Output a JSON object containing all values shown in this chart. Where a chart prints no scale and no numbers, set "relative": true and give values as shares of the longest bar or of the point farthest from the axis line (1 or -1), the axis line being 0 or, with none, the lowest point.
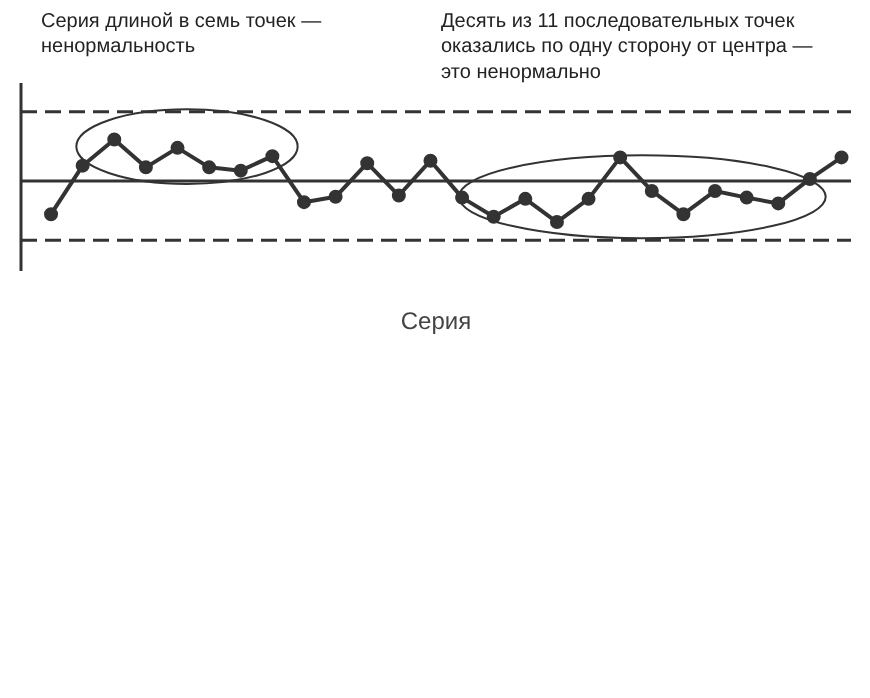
{
  "chart_data": {
    "type": "line",
    "relative": true,
    "xlabel": "Серия",
    "annotations": [
      "Серия длиной в семь точек — ненормальность",
      "Десять из 11 последовательных точек оказались по одну сторону от центра — это ненормально"
    ],
    "categories": [
      null,
      null,
      null,
      null,
      null,
      null,
      null,
      null,
      null,
      null,
      null,
      null,
      null,
      null,
      null,
      null,
      null,
      null,
      null,
      null,
      null,
      null,
      null,
      null,
      null,
      null
    ],
    "series": [
      {
        "color": "#333333",
        "values": [
          -0.8,
          0.37,
          1.0,
          0.33,
          0.8,
          0.33,
          0.25,
          0.6,
          -0.51,
          -0.38,
          0.43,
          -0.35,
          0.49,
          -0.4,
          -0.86,
          -0.43,
          -0.99,
          -0.43,
          0.57,
          -0.24,
          -0.8,
          -0.24,
          -0.4,
          -0.54,
          0.05,
          0.57
        ]
      }
    ],
    "ref_lines": [
      {
        "axis": "y",
        "value": 1.67,
        "line_style": "dashed",
        "color": "#333333"
      },
      {
        "axis": "y",
        "value": 0,
        "line_style": "solid",
        "color": "#333333"
      },
      {
        "axis": "y",
        "value": -1.43,
        "line_style": "dashed",
        "color": "#333333"
      }
    ],
    "marker": "circle",
    "line_style": "solid"
  }
}
